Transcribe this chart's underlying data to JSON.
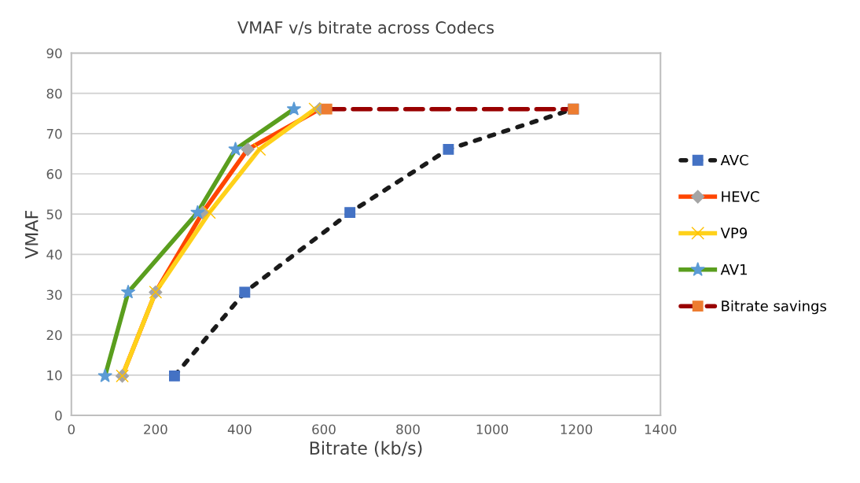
{
  "chart_data": {
    "type": "line",
    "title": "VMAF v/s bitrate across Codecs",
    "xlabel": "Bitrate (kb/s)",
    "ylabel": "VMAF",
    "xlim": [
      0,
      1400
    ],
    "xticks": [
      0,
      200,
      400,
      600,
      800,
      1000,
      1200,
      1400
    ],
    "ylim": [
      0,
      90
    ],
    "yticks": [
      0,
      10,
      20,
      30,
      40,
      50,
      60,
      70,
      80,
      90
    ],
    "grid": "y",
    "legend": "right",
    "series": [
      {
        "name": "AVC",
        "color": "#1a1a1a",
        "colors": [
          "#4472c4",
          "#4472c4",
          "#4472c4",
          "#4472c4",
          "#4472c4"
        ],
        "marker": "square",
        "line_style": "dotted",
        "x": [
          245,
          412,
          662,
          896,
          1193
        ],
        "values": [
          9.8,
          30.6,
          50.4,
          66.1,
          76.1
        ]
      },
      {
        "name": "HEVC",
        "color": "#ff4500",
        "colors": [
          "#a5a5a5",
          "#a5a5a5",
          "#a5a5a5",
          "#a5a5a5",
          "#a5a5a5"
        ],
        "marker": "diamond",
        "line_style": "solid",
        "x": [
          121,
          200,
          312,
          419,
          590
        ],
        "values": [
          9.8,
          30.6,
          50.4,
          66.1,
          76.1
        ]
      },
      {
        "name": "VP9",
        "color": "#ffd11a",
        "colors": [
          "#ffc000",
          "#ffc000",
          "#ffc000",
          "#ffc000",
          "#ffc000"
        ],
        "marker": "cross",
        "line_style": "solid",
        "x": [
          121,
          200,
          328,
          447,
          579
        ],
        "values": [
          9.8,
          30.6,
          50.4,
          66.1,
          76.1
        ]
      },
      {
        "name": "AV1",
        "color": "#5a9e1e",
        "colors": [
          "#5b9bd5",
          "#5b9bd5",
          "#5b9bd5",
          "#5b9bd5",
          "#5b9bd5"
        ],
        "marker": "star",
        "line_style": "solid",
        "x": [
          80,
          135,
          300,
          390,
          529
        ],
        "values": [
          9.8,
          30.6,
          50.4,
          66.1,
          76.1
        ]
      },
      {
        "name": "Bitrate savings",
        "color": "#990000",
        "colors": [
          "#ed7d31",
          "#ed7d31"
        ],
        "marker": "square",
        "line_style": "dashed",
        "x": [
          607,
          1193
        ],
        "values": [
          76.1,
          76.1
        ]
      }
    ]
  }
}
